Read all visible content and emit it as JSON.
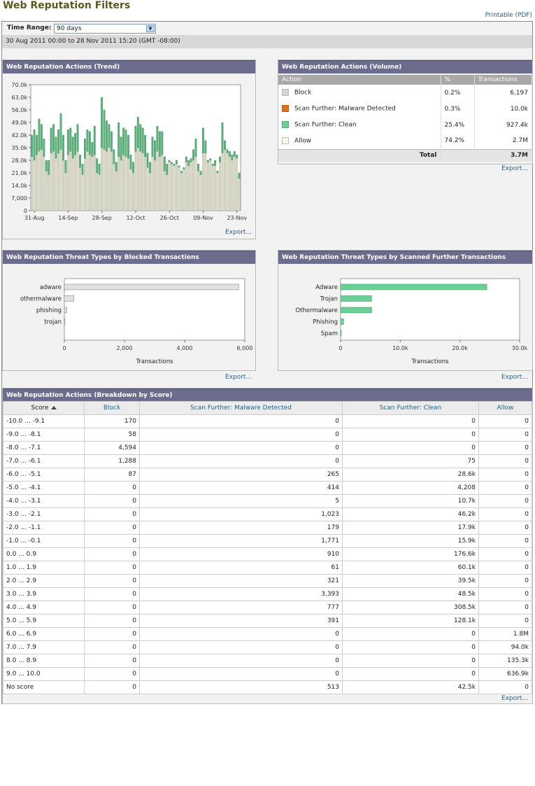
{
  "page": {
    "title": "Web Reputation Filters",
    "printable_label": "Printable (PDF)"
  },
  "time_range": {
    "label": "Time Range:",
    "value": "90 days",
    "date_range": "30 Aug 2011 00:00 to 28 Nov 2011 15:20 (GMT -08:00)"
  },
  "colors": {
    "block": "#d4d4d4",
    "malware": "#e07020",
    "clean": "#6ccf95",
    "allow": "#fdfde9",
    "trend_clean": "#58b078",
    "trend_allow": "#d8d8c4",
    "header": "#6c6c8e"
  },
  "trend_panel": {
    "title": "Web Reputation Actions (Trend)",
    "export_label": "Export..."
  },
  "volume_panel": {
    "title": "Web Reputation Actions (Volume)",
    "export_label": "Export...",
    "columns": [
      "Action",
      "%",
      "Transactions"
    ],
    "rows": [
      {
        "action": "Block",
        "pct": "0.2%",
        "transactions": "6,197",
        "color": "#d4d4d4"
      },
      {
        "action": "Scan Further: Malware Detected",
        "pct": "0.3%",
        "transactions": "10.0k",
        "color": "#e07020"
      },
      {
        "action": "Scan Further: Clean",
        "pct": "25.4%",
        "transactions": "927.4k",
        "color": "#6ccf95"
      },
      {
        "action": "Allow",
        "pct": "74.2%",
        "transactions": "2.7M",
        "color": "#fdfde9"
      }
    ],
    "total_label": "Total",
    "total_value": "3.7M"
  },
  "blocked_panel": {
    "title": "Web Reputation Threat Types by Blocked Transactions",
    "export_label": "Export..."
  },
  "scanned_panel": {
    "title": "Web Reputation Threat Types by Scanned Further Transactions",
    "export_label": "Export..."
  },
  "breakdown_panel": {
    "title": "Web Reputation Actions (Breakdown by Score)",
    "export_label": "Export...",
    "columns": [
      "Score",
      "Block",
      "Scan Further: Malware Detected",
      "Scan Further: Clean",
      "Allow"
    ],
    "rows": [
      [
        "-10.0 ... -9.1",
        "170",
        "0",
        "0",
        "0"
      ],
      [
        "-9.0 ... -8.1",
        "58",
        "0",
        "0",
        "0"
      ],
      [
        "-8.0 ... -7.1",
        "4,594",
        "0",
        "0",
        "0"
      ],
      [
        "-7.0 ... -6.1",
        "1,288",
        "0",
        "75",
        "0"
      ],
      [
        "-6.0 ... -5.1",
        "87",
        "265",
        "28.6k",
        "0"
      ],
      [
        "-5.0 ... -4.1",
        "0",
        "414",
        "4,208",
        "0"
      ],
      [
        "-4.0 ... -3.1",
        "0",
        "5",
        "10.7k",
        "0"
      ],
      [
        "-3.0 ... -2.1",
        "0",
        "1,023",
        "46.2k",
        "0"
      ],
      [
        "-2.0 ... -1.1",
        "0",
        "179",
        "17.9k",
        "0"
      ],
      [
        "-1.0 ... -0.1",
        "0",
        "1,771",
        "15.9k",
        "0"
      ],
      [
        "0.0 ... 0.9",
        "0",
        "910",
        "176.6k",
        "0"
      ],
      [
        "1.0 ... 1.9",
        "0",
        "61",
        "60.1k",
        "0"
      ],
      [
        "2.0 ... 2.9",
        "0",
        "321",
        "39.5k",
        "0"
      ],
      [
        "3.0 ... 3.9",
        "0",
        "3,393",
        "48.5k",
        "0"
      ],
      [
        "4.0 ... 4.9",
        "0",
        "777",
        "308.5k",
        "0"
      ],
      [
        "5.0 ... 5.9",
        "0",
        "391",
        "128.1k",
        "0"
      ],
      [
        "6.0 ... 6.9",
        "0",
        "0",
        "0",
        "1.8M"
      ],
      [
        "7.0 ... 7.9",
        "0",
        "0",
        "0",
        "94.0k"
      ],
      [
        "8.0 ... 8.9",
        "0",
        "0",
        "0",
        "135.3k"
      ],
      [
        "9.0 ... 10.0",
        "0",
        "0",
        "0",
        "636.9k"
      ],
      [
        "No score",
        "0",
        "513",
        "42.5k",
        "0"
      ]
    ]
  },
  "chart_data": [
    {
      "type": "bar",
      "stacked": true,
      "ylim": [
        0,
        70000
      ],
      "yticks": [
        "0",
        "7,000",
        "14.0k",
        "21.0k",
        "28.0k",
        "35.0k",
        "42.0k",
        "49.0k",
        "56.0k",
        "63.0k",
        "70.0k"
      ],
      "xticks": [
        "31-Aug",
        "14-Sep",
        "28-Sep",
        "12-Oct",
        "26-Oct",
        "09-Nov",
        "23-Nov"
      ],
      "xtick_index": [
        1,
        15,
        29,
        43,
        57,
        71,
        85
      ],
      "series": [
        {
          "name": "Allow",
          "values": [
            30000,
            28000,
            31000,
            33000,
            34000,
            30000,
            22000,
            20000,
            32000,
            33000,
            29000,
            32000,
            34000,
            28000,
            21000,
            31000,
            33000,
            29000,
            31000,
            33000,
            24000,
            20000,
            29000,
            33000,
            31000,
            30000,
            31000,
            21000,
            20000,
            35000,
            34000,
            33000,
            35000,
            33000,
            26000,
            22000,
            30000,
            28000,
            31000,
            30000,
            29000,
            23000,
            21000,
            33000,
            35000,
            33000,
            32000,
            30000,
            24000,
            21000,
            30000,
            28000,
            33000,
            30000,
            31000,
            22000,
            20000,
            27000,
            26000,
            25000,
            26000,
            24000,
            21000,
            23000,
            27000,
            25000,
            27000,
            28000,
            30000,
            22000,
            20000,
            32000,
            32000,
            27000,
            28000,
            25000,
            25000,
            21000,
            27000,
            32000,
            34000,
            32000,
            30000,
            28000,
            30000,
            29000,
            18000
          ]
        },
        {
          "name": "Scan Further: Clean",
          "values": [
            12000,
            17000,
            11000,
            18000,
            14000,
            10000,
            6000,
            8000,
            14000,
            15000,
            12000,
            13000,
            20000,
            14000,
            7000,
            14000,
            13000,
            12000,
            12000,
            15000,
            7000,
            6000,
            11000,
            12000,
            13000,
            8000,
            16000,
            8000,
            6000,
            28000,
            22000,
            17000,
            13000,
            11000,
            8000,
            5000,
            19000,
            13000,
            15000,
            15000,
            13000,
            8000,
            6000,
            14000,
            17000,
            15000,
            14000,
            12000,
            8000,
            6000,
            11000,
            11000,
            14000,
            14000,
            13000,
            8000,
            6000,
            1000,
            1000,
            1000,
            2000,
            1000,
            1000,
            1000,
            3000,
            3000,
            2000,
            6000,
            10000,
            4000,
            2000,
            14000,
            7000,
            1000,
            1000,
            1000,
            3000,
            1000,
            3000,
            17000,
            5000,
            2000,
            3000,
            3000,
            3000,
            2000,
            3000
          ]
        },
        {
          "name": "Scan Further: Malware Detected",
          "values": [
            0,
            0,
            0,
            0,
            0,
            0,
            0,
            0,
            0,
            0,
            0,
            0,
            0,
            0,
            0,
            0,
            0,
            0,
            0,
            0,
            0,
            0,
            0,
            0,
            0,
            0,
            0,
            0,
            0,
            0,
            0,
            0,
            0,
            0,
            0,
            0,
            0,
            0,
            0,
            0,
            0,
            0,
            0,
            0,
            0,
            0,
            0,
            0,
            0,
            0,
            0,
            0,
            0,
            0,
            0,
            0,
            0,
            0,
            0,
            0,
            0,
            0,
            0,
            0,
            0,
            0,
            0,
            0,
            0,
            0,
            0,
            0,
            0,
            0,
            0,
            0,
            0,
            0,
            0,
            0,
            0,
            0,
            0,
            0,
            0,
            0,
            0
          ]
        }
      ]
    },
    {
      "type": "bar",
      "orientation": "horizontal",
      "categories": [
        "adware",
        "othermalware",
        "phishing",
        "trojan"
      ],
      "values": [
        5800,
        320,
        85,
        15
      ],
      "xlabel": "Transactions",
      "xlim": [
        0,
        6000
      ],
      "xticks": [
        "0",
        "2,000",
        "4,000",
        "6,000"
      ]
    },
    {
      "type": "bar",
      "orientation": "horizontal",
      "categories": [
        "Adware",
        "Trojan",
        "Othermalware",
        "Phishing",
        "Spam"
      ],
      "values": [
        24500,
        5200,
        5200,
        500,
        100
      ],
      "xlabel": "Transactions",
      "xlim": [
        0,
        30000
      ],
      "xticks": [
        "0",
        "10.0k",
        "20.0k",
        "30.0k"
      ]
    }
  ]
}
